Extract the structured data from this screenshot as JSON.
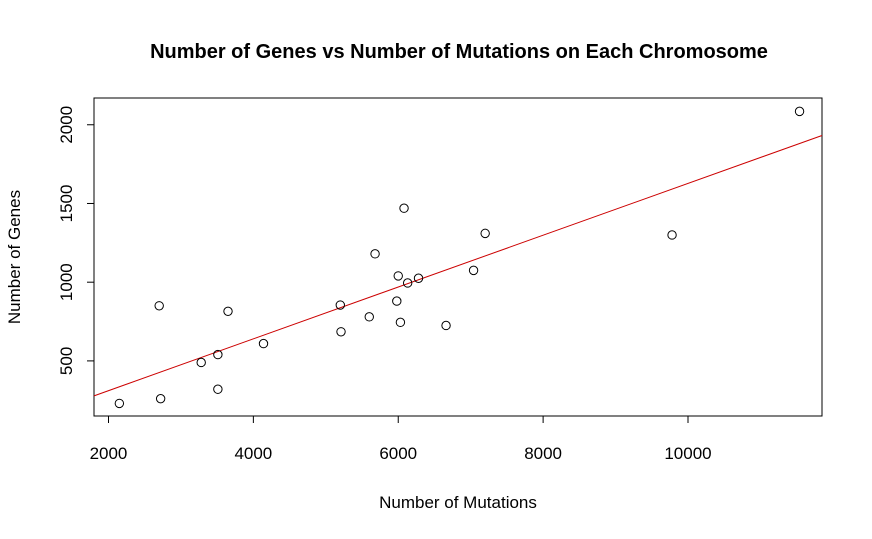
{
  "chart_data": {
    "type": "scatter",
    "title": "Number of Genes vs Number of Mutations on Each Chromosome",
    "xlabel": "Number of Mutations",
    "ylabel": "Number of Genes",
    "xlim": [
      1800,
      11850
    ],
    "ylim": [
      150,
      2170
    ],
    "xticks": [
      2000,
      4000,
      6000,
      8000,
      10000
    ],
    "yticks": [
      500,
      1000,
      1500,
      2000
    ],
    "grid": false,
    "point_color": "#000000",
    "fit_line_color": "#cc0000",
    "points": [
      {
        "x": 2150,
        "y": 230
      },
      {
        "x": 2720,
        "y": 260
      },
      {
        "x": 2700,
        "y": 850
      },
      {
        "x": 3280,
        "y": 490
      },
      {
        "x": 3510,
        "y": 540
      },
      {
        "x": 3510,
        "y": 320
      },
      {
        "x": 3650,
        "y": 815
      },
      {
        "x": 4140,
        "y": 610
      },
      {
        "x": 5200,
        "y": 855
      },
      {
        "x": 5210,
        "y": 685
      },
      {
        "x": 5600,
        "y": 780
      },
      {
        "x": 5680,
        "y": 1180
      },
      {
        "x": 5980,
        "y": 880
      },
      {
        "x": 6000,
        "y": 1040
      },
      {
        "x": 6030,
        "y": 745
      },
      {
        "x": 6080,
        "y": 1470
      },
      {
        "x": 6130,
        "y": 995
      },
      {
        "x": 6280,
        "y": 1025
      },
      {
        "x": 6660,
        "y": 725
      },
      {
        "x": 7040,
        "y": 1075
      },
      {
        "x": 7200,
        "y": 1310
      },
      {
        "x": 9780,
        "y": 1300
      },
      {
        "x": 11540,
        "y": 2085
      }
    ],
    "fit_line": {
      "x": [
        1800,
        11850
      ],
      "y": [
        278,
        1932
      ]
    }
  }
}
